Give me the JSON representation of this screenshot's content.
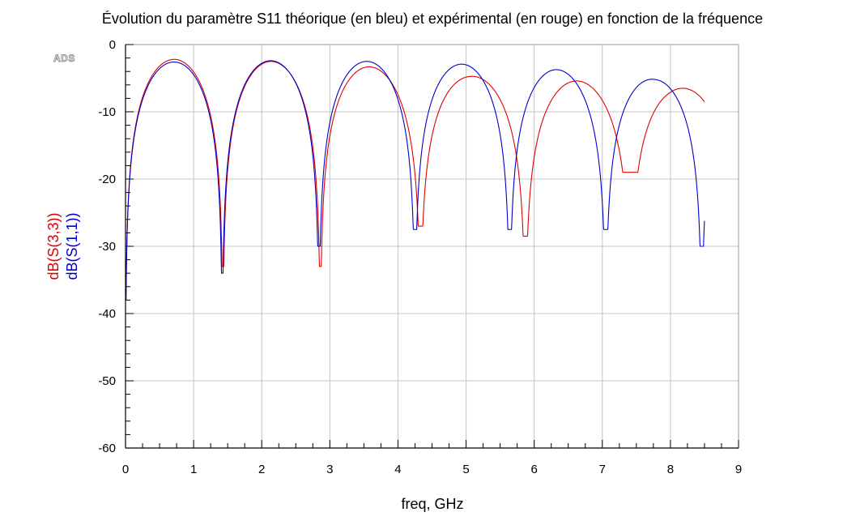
{
  "chart_data": {
    "type": "line",
    "title": "Évolution du paramètre S11 théorique (en bleu) et expérimental (en rouge) en fonction de la fréquence",
    "xlabel": "freq, GHz",
    "watermark": "ADS",
    "xlim": [
      0,
      9
    ],
    "ylim": [
      -60,
      0
    ],
    "x_ticks": [
      0,
      1,
      2,
      3,
      4,
      5,
      6,
      7,
      8,
      9
    ],
    "y_ticks": [
      0,
      -10,
      -20,
      -30,
      -40,
      -50,
      -60
    ],
    "x_minor_step": 0.25,
    "y_minor_step": 2,
    "grid": true,
    "series": [
      {
        "name": "dB(S(3,3))",
        "description": "expérimental",
        "color": "#e00000",
        "x_end": 8.5,
        "nulls": [
          {
            "f": 1.43,
            "depth": -33
          },
          {
            "f": 2.86,
            "depth": -33
          },
          {
            "f": 4.33,
            "depth": -27
          },
          {
            "f": 5.87,
            "depth": -28.5
          },
          {
            "f": 7.41,
            "depth": -19
          }
        ],
        "peaks": [
          {
            "f": 0.74,
            "level": -2.2
          },
          {
            "f": 2.14,
            "level": -2.5
          },
          {
            "f": 3.58,
            "level": -3.3
          },
          {
            "f": 5.04,
            "level": -4.7
          },
          {
            "f": 6.63,
            "level": -5.4
          },
          {
            "f": 7.97,
            "level": -6.5
          }
        ]
      },
      {
        "name": "dB(S(1,1))",
        "description": "théorique",
        "color": "#0000cc",
        "x_end": 8.5,
        "nulls": [
          {
            "f": 1.42,
            "depth": -34
          },
          {
            "f": 2.84,
            "depth": -30
          },
          {
            "f": 4.25,
            "depth": -27.5
          },
          {
            "f": 5.64,
            "depth": -27.5
          },
          {
            "f": 7.05,
            "depth": -27.5
          }
        ],
        "peaks": [
          {
            "f": 0.72,
            "level": -2.6
          },
          {
            "f": 2.12,
            "level": -2.4
          },
          {
            "f": 3.55,
            "level": -2.5
          },
          {
            "f": 4.92,
            "level": -2.9
          },
          {
            "f": 6.3,
            "level": -3.7
          },
          {
            "f": 7.79,
            "level": -5.2
          }
        ]
      }
    ]
  }
}
